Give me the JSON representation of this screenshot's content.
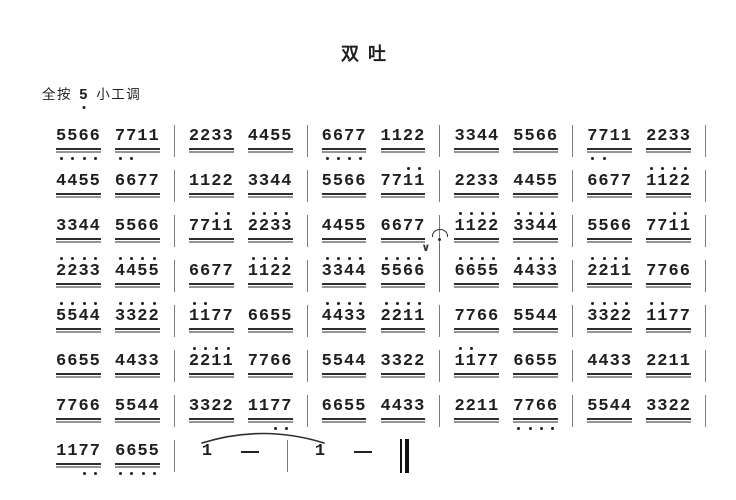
{
  "title": "双吐",
  "key_signature": {
    "prefix": "全按",
    "note": "5",
    "note_octave": "low",
    "suffix": "小工调"
  },
  "symbols": {
    "breath": "∨",
    "dash": "—"
  },
  "colors": {
    "ink": "#1f1f1f",
    "underline_dark": "#2e2e2e",
    "underline_light": "#949494",
    "barline": "#7d7d7d"
  },
  "score": {
    "octave_legend": "o string per digit: H=dot above (high octave), L=dot below (low octave), -=none; u=number of beam underlines",
    "rows": [
      {
        "measures": [
          {
            "groups": [
              {
                "d": "5566",
                "o": "LLLL",
                "u": 2
              },
              {
                "d": "7711",
                "o": "LL--",
                "u": 2
              }
            ],
            "bar": "normal"
          },
          {
            "groups": [
              {
                "d": "2233",
                "o": "----",
                "u": 2
              },
              {
                "d": "4455",
                "o": "----",
                "u": 2
              }
            ],
            "bar": "normal"
          },
          {
            "groups": [
              {
                "d": "6677",
                "o": "LLLL",
                "u": 2
              },
              {
                "d": "1122",
                "o": "----",
                "u": 2
              }
            ],
            "bar": "normal"
          },
          {
            "groups": [
              {
                "d": "3344",
                "o": "----",
                "u": 2
              },
              {
                "d": "5566",
                "o": "----",
                "u": 2
              }
            ],
            "bar": "normal"
          },
          {
            "groups": [
              {
                "d": "7711",
                "o": "LL--",
                "u": 2
              },
              {
                "d": "2233",
                "o": "----",
                "u": 2
              }
            ],
            "bar": "normal"
          }
        ]
      },
      {
        "measures": [
          {
            "groups": [
              {
                "d": "4455",
                "o": "----",
                "u": 2
              },
              {
                "d": "6677",
                "o": "----",
                "u": 2
              }
            ],
            "bar": "normal"
          },
          {
            "groups": [
              {
                "d": "1122",
                "o": "----",
                "u": 2
              },
              {
                "d": "3344",
                "o": "----",
                "u": 2
              }
            ],
            "bar": "normal"
          },
          {
            "groups": [
              {
                "d": "5566",
                "o": "----",
                "u": 2
              },
              {
                "d": "7711",
                "o": "--HH",
                "u": 2
              }
            ],
            "bar": "normal"
          },
          {
            "groups": [
              {
                "d": "2233",
                "o": "----",
                "u": 2
              },
              {
                "d": "4455",
                "o": "----",
                "u": 2
              }
            ],
            "bar": "normal"
          },
          {
            "groups": [
              {
                "d": "6677",
                "o": "----",
                "u": 2
              },
              {
                "d": "1122",
                "o": "HHHH",
                "u": 2
              }
            ],
            "bar": "normal"
          }
        ]
      },
      {
        "measures": [
          {
            "groups": [
              {
                "d": "3344",
                "o": "----",
                "u": 2
              },
              {
                "d": "5566",
                "o": "----",
                "u": 2
              }
            ],
            "bar": "normal"
          },
          {
            "groups": [
              {
                "d": "7711",
                "o": "--HH",
                "u": 2
              },
              {
                "d": "2233",
                "o": "HHHH",
                "u": 2
              }
            ],
            "bar": "normal"
          },
          {
            "groups": [
              {
                "d": "4455",
                "o": "----",
                "u": 2
              },
              {
                "d": "6677",
                "o": "----",
                "u": 2
              }
            ],
            "bar": "normal"
          },
          {
            "groups": [
              {
                "d": "1122",
                "o": "HHHH",
                "u": 2
              },
              {
                "d": "3344",
                "o": "HHHH",
                "u": 2
              }
            ],
            "bar": "normal"
          },
          {
            "groups": [
              {
                "d": "5566",
                "o": "----",
                "u": 2
              },
              {
                "d": "7711",
                "o": "--HH",
                "u": 2
              }
            ],
            "bar": "normal"
          }
        ]
      },
      {
        "measures": [
          {
            "groups": [
              {
                "d": "2233",
                "o": "HHHH",
                "u": 2
              },
              {
                "d": "4455",
                "o": "HHHH",
                "u": 2
              }
            ],
            "bar": "normal"
          },
          {
            "groups": [
              {
                "d": "6677",
                "o": "----",
                "u": 2
              },
              {
                "d": "1122",
                "o": "HHHH",
                "u": 2
              }
            ],
            "bar": "normal"
          },
          {
            "groups": [
              {
                "d": "3344",
                "o": "HHHH",
                "u": 2
              },
              {
                "d": "5566",
                "o": "HHHH",
                "u": 2,
                "breath": true
              }
            ],
            "bar": "fermata"
          },
          {
            "groups": [
              {
                "d": "6655",
                "o": "HHHH",
                "u": 2
              },
              {
                "d": "4433",
                "o": "HHHH",
                "u": 2
              }
            ],
            "bar": "normal"
          },
          {
            "groups": [
              {
                "d": "2211",
                "o": "HHHH",
                "u": 2
              },
              {
                "d": "7766",
                "o": "----",
                "u": 2
              }
            ],
            "bar": "normal"
          }
        ]
      },
      {
        "measures": [
          {
            "groups": [
              {
                "d": "5544",
                "o": "HHHH",
                "u": 2
              },
              {
                "d": "3322",
                "o": "HHHH",
                "u": 2
              }
            ],
            "bar": "normal"
          },
          {
            "groups": [
              {
                "d": "1177",
                "o": "HH--",
                "u": 2
              },
              {
                "d": "6655",
                "o": "----",
                "u": 2
              }
            ],
            "bar": "normal"
          },
          {
            "groups": [
              {
                "d": "4433",
                "o": "HHHH",
                "u": 2
              },
              {
                "d": "2211",
                "o": "HHHH",
                "u": 2
              }
            ],
            "bar": "normal"
          },
          {
            "groups": [
              {
                "d": "7766",
                "o": "----",
                "u": 2
              },
              {
                "d": "5544",
                "o": "----",
                "u": 2
              }
            ],
            "bar": "normal"
          },
          {
            "groups": [
              {
                "d": "3322",
                "o": "HHHH",
                "u": 2
              },
              {
                "d": "1177",
                "o": "HH--",
                "u": 2
              }
            ],
            "bar": "normal"
          }
        ]
      },
      {
        "measures": [
          {
            "groups": [
              {
                "d": "6655",
                "o": "----",
                "u": 2
              },
              {
                "d": "4433",
                "o": "----",
                "u": 2
              }
            ],
            "bar": "normal"
          },
          {
            "groups": [
              {
                "d": "2211",
                "o": "HHHH",
                "u": 2
              },
              {
                "d": "7766",
                "o": "----",
                "u": 2
              }
            ],
            "bar": "normal"
          },
          {
            "groups": [
              {
                "d": "5544",
                "o": "----",
                "u": 2
              },
              {
                "d": "3322",
                "o": "----",
                "u": 2
              }
            ],
            "bar": "normal"
          },
          {
            "groups": [
              {
                "d": "1177",
                "o": "HH--",
                "u": 2
              },
              {
                "d": "6655",
                "o": "----",
                "u": 2
              }
            ],
            "bar": "normal"
          },
          {
            "groups": [
              {
                "d": "4433",
                "o": "----",
                "u": 2
              },
              {
                "d": "2211",
                "o": "----",
                "u": 2
              }
            ],
            "bar": "normal"
          }
        ]
      },
      {
        "measures": [
          {
            "groups": [
              {
                "d": "7766",
                "o": "----",
                "u": 2
              },
              {
                "d": "5544",
                "o": "----",
                "u": 2
              }
            ],
            "bar": "normal"
          },
          {
            "groups": [
              {
                "d": "3322",
                "o": "----",
                "u": 2
              },
              {
                "d": "1177",
                "o": "--LL",
                "u": 2
              }
            ],
            "bar": "normal"
          },
          {
            "groups": [
              {
                "d": "6655",
                "o": "----",
                "u": 2
              },
              {
                "d": "4433",
                "o": "----",
                "u": 2
              }
            ],
            "bar": "normal"
          },
          {
            "groups": [
              {
                "d": "2211",
                "o": "----",
                "u": 2
              },
              {
                "d": "7766",
                "o": "LLLL",
                "u": 2
              }
            ],
            "bar": "normal"
          },
          {
            "groups": [
              {
                "d": "5544",
                "o": "----",
                "u": 2
              },
              {
                "d": "3322",
                "o": "----",
                "u": 2
              }
            ],
            "bar": "normal"
          }
        ]
      },
      {
        "tie": true,
        "measures": [
          {
            "groups": [
              {
                "d": "1177",
                "o": "--LL",
                "u": 2
              },
              {
                "d": "6655",
                "o": "LLLL",
                "u": 2
              }
            ],
            "bar": "normal",
            "w": 132
          },
          {
            "groups": [
              {
                "d": "1",
                "o": "-",
                "u": 0
              },
              {
                "d": "—",
                "o": "-",
                "u": 0,
                "dash": true
              }
            ],
            "bar": "normal",
            "w": 112
          },
          {
            "groups": [
              {
                "d": "1",
                "o": "-",
                "u": 0
              },
              {
                "d": "—",
                "o": "-",
                "u": 0,
                "dash": true
              }
            ],
            "bar": "final",
            "w": 112
          }
        ]
      }
    ]
  }
}
